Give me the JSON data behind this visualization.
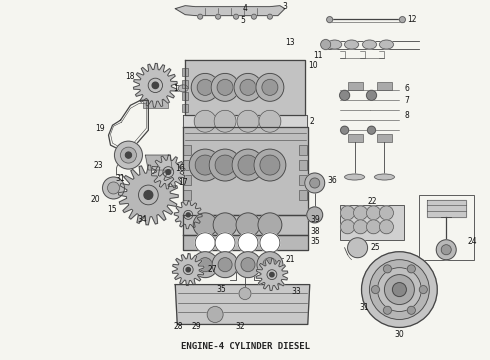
{
  "title": "ENGINE-4 CYLINDER DIESEL",
  "title_fontsize": 6.5,
  "title_color": "#222222",
  "bg_color": "#f5f5f0",
  "fig_width": 4.9,
  "fig_height": 3.6,
  "dpi": 100,
  "line_color": "#444444",
  "label_fontsize": 5.5,
  "label_color": "#111111",
  "gray_fill": "#c8c8c8",
  "dark_gray": "#888888",
  "light_gray": "#e0e0e0"
}
